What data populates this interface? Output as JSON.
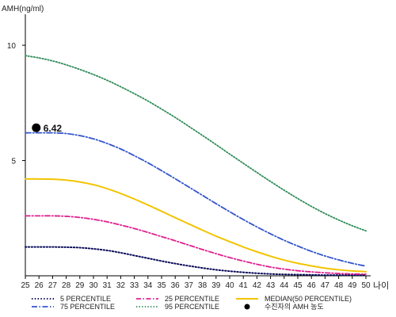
{
  "chart_data": {
    "type": "line",
    "ylabel": "AMH(ng/ml)",
    "xlabel": "나이",
    "xlim": [
      25,
      50
    ],
    "ylim": [
      0,
      11
    ],
    "yticks": [
      5,
      10
    ],
    "x": [
      25,
      26,
      27,
      28,
      29,
      30,
      31,
      32,
      33,
      34,
      35,
      36,
      37,
      38,
      39,
      40,
      41,
      42,
      43,
      44,
      45,
      46,
      47,
      48,
      49,
      50
    ],
    "series": [
      {
        "name": "5 PERCENTILE",
        "color": "#0a0a5a",
        "dash": "1.4,2.4",
        "width": 2,
        "values": [
          1.25,
          1.25,
          1.25,
          1.24,
          1.22,
          1.17,
          1.1,
          1.0,
          0.88,
          0.76,
          0.64,
          0.53,
          0.43,
          0.34,
          0.26,
          0.2,
          0.15,
          0.11,
          0.08,
          0.06,
          0.05,
          0.04,
          0.03,
          0.03,
          0.03,
          0.03
        ]
      },
      {
        "name": "25 PERCENTILE",
        "color": "#e0208f",
        "dash": "6,2.5,1.5,2.5",
        "width": 1.8,
        "values": [
          2.6,
          2.6,
          2.6,
          2.58,
          2.53,
          2.45,
          2.34,
          2.2,
          2.05,
          1.88,
          1.7,
          1.52,
          1.33,
          1.14,
          0.96,
          0.79,
          0.64,
          0.5,
          0.38,
          0.29,
          0.22,
          0.17,
          0.13,
          0.1,
          0.08,
          0.07
        ]
      },
      {
        "name": "MEDIAN(50 PERCENTILE)",
        "color": "#f2c400",
        "dash": "",
        "width": 2,
        "values": [
          4.2,
          4.2,
          4.19,
          4.15,
          4.07,
          3.95,
          3.78,
          3.57,
          3.33,
          3.07,
          2.8,
          2.52,
          2.25,
          1.98,
          1.72,
          1.48,
          1.25,
          1.04,
          0.85,
          0.68,
          0.54,
          0.43,
          0.33,
          0.26,
          0.21,
          0.18
        ]
      },
      {
        "name": "75 PERCENTILE",
        "color": "#3355cc",
        "dash": "7,2.5,1.5,2.5",
        "width": 1.8,
        "values": [
          6.2,
          6.2,
          6.2,
          6.17,
          6.08,
          5.94,
          5.74,
          5.5,
          5.21,
          4.9,
          4.56,
          4.21,
          3.85,
          3.49,
          3.13,
          2.78,
          2.44,
          2.12,
          1.82,
          1.54,
          1.29,
          1.06,
          0.86,
          0.69,
          0.54,
          0.42
        ]
      },
      {
        "name": "95 PERCENTILE",
        "color": "#2e8b57",
        "dash": "1.4,2.2",
        "width": 1.8,
        "values": [
          9.55,
          9.45,
          9.32,
          9.15,
          8.95,
          8.73,
          8.48,
          8.2,
          7.9,
          7.58,
          7.23,
          6.87,
          6.48,
          6.09,
          5.69,
          5.28,
          4.88,
          4.48,
          4.09,
          3.71,
          3.35,
          3.01,
          2.7,
          2.42,
          2.17,
          1.95
        ]
      }
    ],
    "patient_marker": {
      "label": "수진자의 AMH 농도",
      "x": 25.8,
      "y": 6.42,
      "value_text": "6.42"
    },
    "legend_position": "bottom",
    "grid": false
  }
}
